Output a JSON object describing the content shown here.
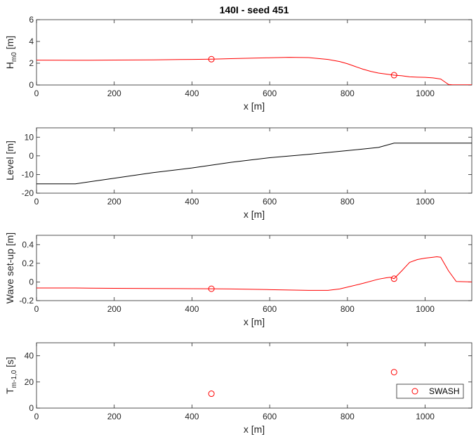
{
  "title": "140I - seed 451",
  "chart_data": [
    {
      "type": "line",
      "name": "hm0",
      "xlabel": "x [m]",
      "ylabel": "H",
      "ylabel_sub": "m0",
      "ylabel_unit": " [m]",
      "xlim": [
        0,
        1120
      ],
      "ylim": [
        0,
        6
      ],
      "xticks": [
        0,
        200,
        400,
        600,
        800,
        1000
      ],
      "yticks": [
        0,
        2,
        4,
        6
      ],
      "series": [
        {
          "style": "line",
          "color": "#ff0000",
          "x": [
            0,
            100,
            200,
            300,
            400,
            450,
            500,
            600,
            650,
            700,
            750,
            780,
            800,
            820,
            840,
            860,
            880,
            900,
            920,
            940,
            960,
            980,
            1000,
            1020,
            1040,
            1050,
            1060,
            1070,
            1090,
            1120
          ],
          "y": [
            2.28,
            2.27,
            2.29,
            2.31,
            2.35,
            2.37,
            2.42,
            2.5,
            2.54,
            2.52,
            2.35,
            2.15,
            1.95,
            1.7,
            1.45,
            1.25,
            1.1,
            1.0,
            0.9,
            0.85,
            0.75,
            0.72,
            0.7,
            0.65,
            0.55,
            0.3,
            0.05,
            0.02,
            0.02,
            0.02
          ]
        },
        {
          "style": "markers",
          "color": "#ff0000",
          "x": [
            450,
            920
          ],
          "y": [
            2.37,
            0.9
          ]
        }
      ]
    },
    {
      "type": "line",
      "name": "level",
      "xlabel": "x [m]",
      "ylabel": "Level [m]",
      "ylabel_sub": "",
      "ylabel_unit": "",
      "xlim": [
        0,
        1120
      ],
      "ylim": [
        -20,
        15
      ],
      "xticks": [
        0,
        200,
        400,
        600,
        800,
        1000
      ],
      "yticks": [
        -20,
        -10,
        0,
        10
      ],
      "series": [
        {
          "style": "line",
          "color": "#000000",
          "x": [
            0,
            100,
            200,
            300,
            400,
            500,
            600,
            700,
            800,
            880,
            920,
            1000,
            1120
          ],
          "y": [
            -15,
            -15,
            -12,
            -9,
            -6.5,
            -3.5,
            -1,
            0.8,
            2.8,
            4.5,
            6.8,
            6.8,
            6.8
          ]
        }
      ]
    },
    {
      "type": "line",
      "name": "setup",
      "xlabel": "x [m]",
      "ylabel": "Wave set-up [m]",
      "ylabel_sub": "",
      "ylabel_unit": "",
      "xlim": [
        0,
        1120
      ],
      "ylim": [
        -0.2,
        0.5
      ],
      "xticks": [
        0,
        200,
        400,
        600,
        800,
        1000
      ],
      "yticks": [
        -0.2,
        0,
        0.2,
        0.4
      ],
      "series": [
        {
          "style": "line",
          "color": "#ff0000",
          "x": [
            0,
            100,
            200,
            300,
            400,
            450,
            500,
            600,
            700,
            750,
            780,
            800,
            840,
            880,
            900,
            910,
            920,
            940,
            960,
            980,
            1000,
            1020,
            1030,
            1040,
            1060,
            1080,
            1120
          ],
          "y": [
            -0.065,
            -0.065,
            -0.068,
            -0.07,
            -0.072,
            -0.073,
            -0.075,
            -0.082,
            -0.09,
            -0.09,
            -0.075,
            -0.055,
            -0.015,
            0.03,
            0.045,
            0.05,
            0.035,
            0.12,
            0.21,
            0.24,
            0.255,
            0.265,
            0.27,
            0.265,
            0.12,
            0.005,
            0.0
          ]
        },
        {
          "style": "markers",
          "color": "#ff0000",
          "x": [
            450,
            920
          ],
          "y": [
            -0.073,
            0.035
          ]
        }
      ]
    },
    {
      "type": "scatter",
      "name": "tm10",
      "xlabel": "x [m]",
      "ylabel": "T",
      "ylabel_sub": "m-1,0",
      "ylabel_unit": " [s]",
      "xlim": [
        0,
        1120
      ],
      "ylim": [
        0,
        50
      ],
      "xticks": [
        0,
        200,
        400,
        600,
        800,
        1000
      ],
      "yticks": [
        0,
        20,
        40
      ],
      "legend": "SWASH",
      "legend_position": "bottom-right",
      "series": [
        {
          "style": "markers",
          "color": "#ff0000",
          "x": [
            450,
            920
          ],
          "y": [
            11,
            27.5
          ]
        }
      ]
    }
  ]
}
